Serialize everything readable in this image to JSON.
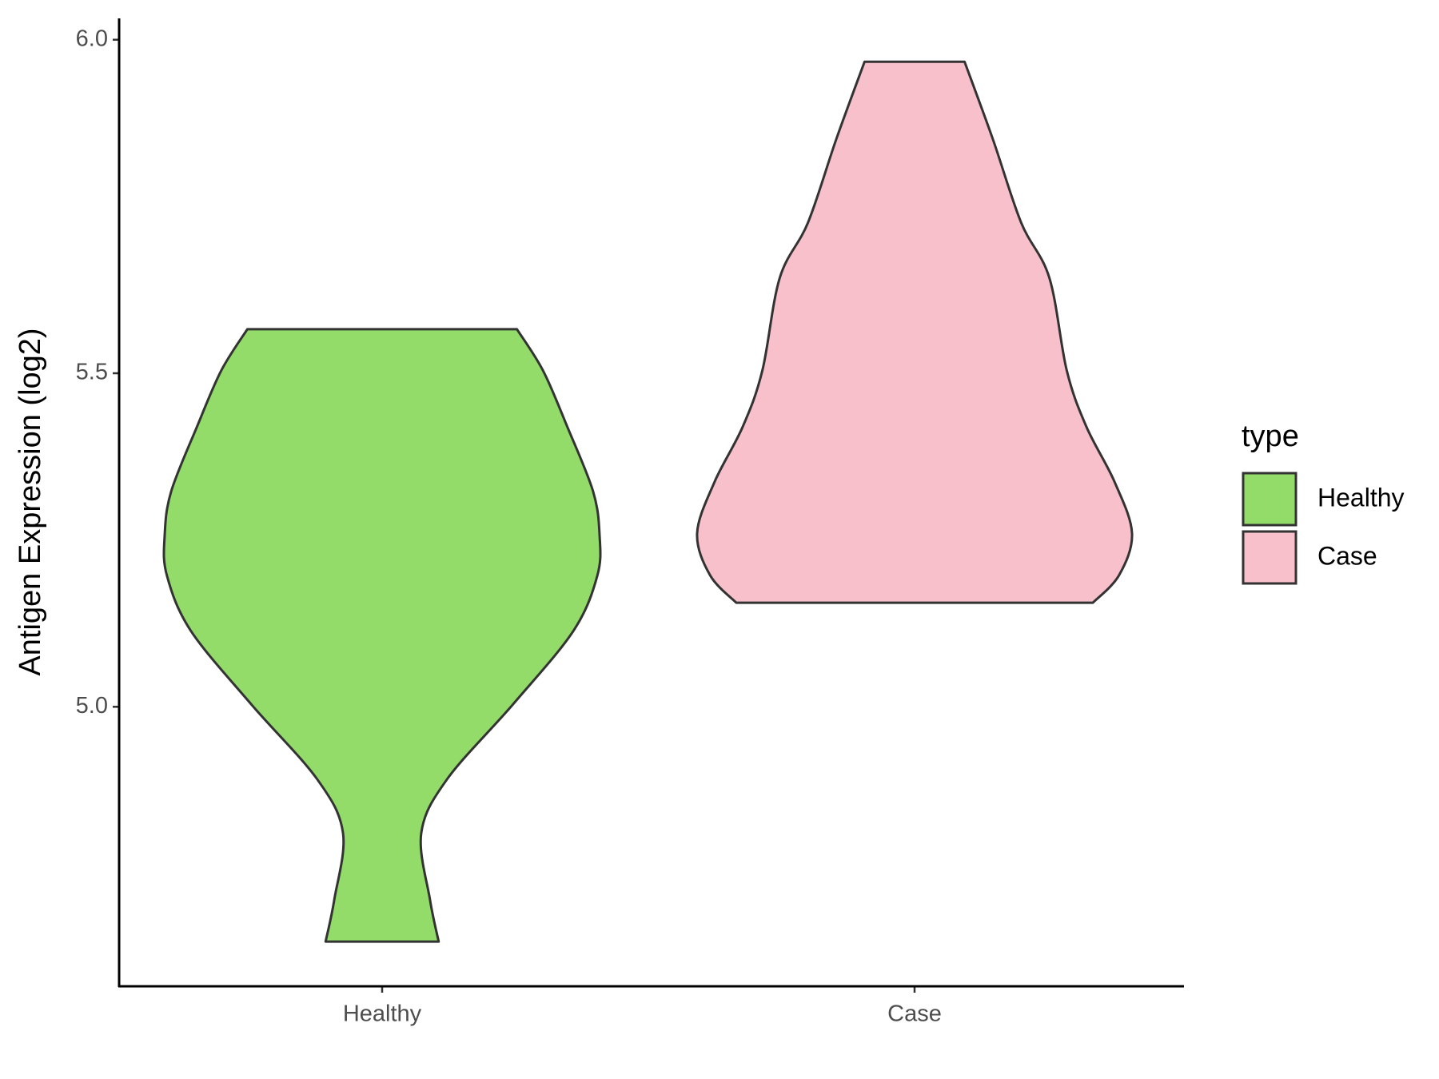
{
  "chart_data": {
    "type": "violin",
    "y_label": "Antigen Expression (log2)",
    "categories": [
      "Healthy",
      "Case"
    ],
    "legend_title": "type",
    "series": [
      {
        "name": "Healthy",
        "color": "#93dc6a",
        "values": [
          4.648,
          4.711,
          4.811,
          4.892,
          5.003,
          5.114,
          5.197,
          5.257,
          5.323,
          5.421,
          5.504,
          5.566
        ],
        "widths": [
          0.26,
          0.22,
          0.18,
          0.3,
          0.6,
          0.88,
          0.99,
          1.0,
          0.97,
          0.85,
          0.74,
          0.62
        ]
      },
      {
        "name": "Case",
        "color": "#f7c0cb",
        "values": [
          5.156,
          5.197,
          5.26,
          5.337,
          5.42,
          5.504,
          5.643,
          5.726,
          5.851,
          5.967
        ],
        "widths": [
          0.82,
          0.94,
          1.0,
          0.92,
          0.79,
          0.7,
          0.62,
          0.49,
          0.36,
          0.23
        ]
      }
    ],
    "ylim": [
      4.581,
      6.032
    ],
    "yticks": [
      {
        "value": 5,
        "label": "5.0"
      },
      {
        "value": 5.5,
        "label": "5.5"
      },
      {
        "value": 6,
        "label": "6.0"
      }
    ],
    "grid": false,
    "legend": "right"
  }
}
